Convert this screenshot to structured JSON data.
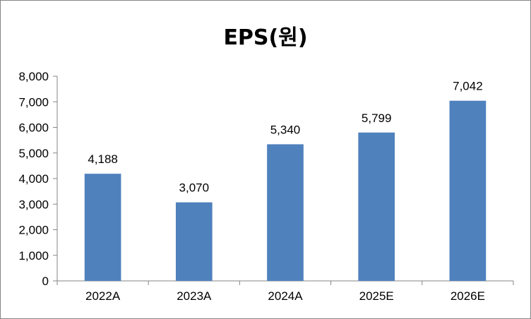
{
  "chart_data": {
    "type": "bar",
    "title": "EPS(원)",
    "categories": [
      "2022A",
      "2023A",
      "2024A",
      "2025E",
      "2026E"
    ],
    "values": [
      4188,
      3070,
      5340,
      5799,
      7042
    ],
    "data_labels": [
      "4,188",
      "3,070",
      "5,340",
      "5,799",
      "7,042"
    ],
    "ylim": [
      0,
      8000
    ],
    "yticks": [
      0,
      1000,
      2000,
      3000,
      4000,
      5000,
      6000,
      7000,
      8000
    ],
    "ytick_labels": [
      "0",
      "1,000",
      "2,000",
      "3,000",
      "4,000",
      "5,000",
      "6,000",
      "7,000",
      "8,000"
    ],
    "xlabel": "",
    "ylabel": "",
    "grid": false,
    "legend": "none",
    "bar_color": "#4F81BD"
  }
}
